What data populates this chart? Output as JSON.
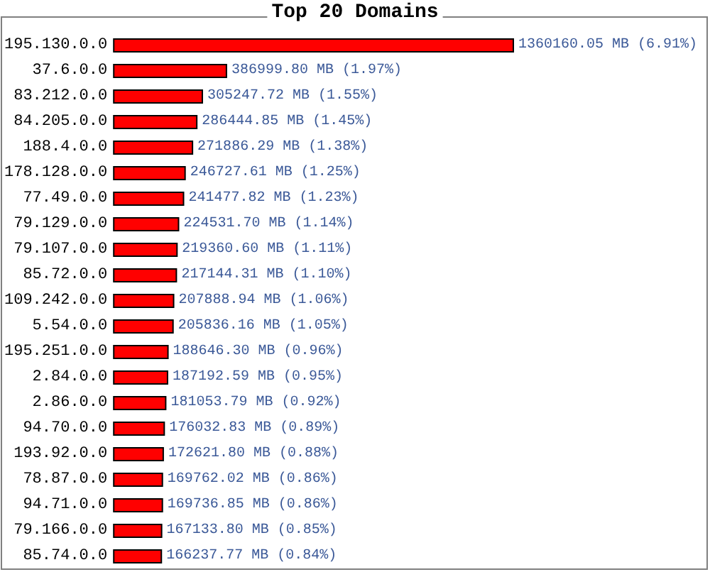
{
  "chart_data": {
    "type": "bar",
    "title": "Top 20 Domains",
    "orientation": "horizontal",
    "categories": [
      "195.130.0.0",
      "37.6.0.0",
      "83.212.0.0",
      "84.205.0.0",
      "188.4.0.0",
      "178.128.0.0",
      "77.49.0.0",
      "79.129.0.0",
      "79.107.0.0",
      "85.72.0.0",
      "109.242.0.0",
      "5.54.0.0",
      "195.251.0.0",
      "2.84.0.0",
      "2.86.0.0",
      "94.70.0.0",
      "193.92.0.0",
      "78.87.0.0",
      "94.71.0.0",
      "79.166.0.0",
      "85.74.0.0"
    ],
    "values": [
      1360160.05,
      386999.8,
      305247.72,
      286444.85,
      271886.29,
      246727.61,
      241477.82,
      224531.7,
      219360.6,
      217144.31,
      207888.94,
      205836.16,
      188646.3,
      187192.59,
      181053.79,
      176032.83,
      172621.8,
      169762.02,
      169736.85,
      167133.8,
      166237.77
    ],
    "value_labels": [
      "1360160.05 MB (6.91%)",
      "386999.80 MB (1.97%)",
      "305247.72 MB (1.55%)",
      "286444.85 MB (1.45%)",
      "271886.29 MB (1.38%)",
      "246727.61 MB (1.25%)",
      "241477.82 MB (1.23%)",
      "224531.70 MB (1.14%)",
      "219360.60 MB (1.11%)",
      "217144.31 MB (1.10%)",
      "207888.94 MB (1.06%)",
      "205836.16 MB (1.05%)",
      "188646.30 MB (0.96%)",
      "187192.59 MB (0.95%)",
      "181053.79 MB (0.92%)",
      "176032.83 MB (0.89%)",
      "172621.80 MB (0.88%)",
      "169762.02 MB (0.86%)",
      "169736.85 MB (0.86%)",
      "167133.80 MB (0.85%)",
      "166237.77 MB (0.84%)"
    ],
    "color": "#ff0000",
    "grid": false
  }
}
